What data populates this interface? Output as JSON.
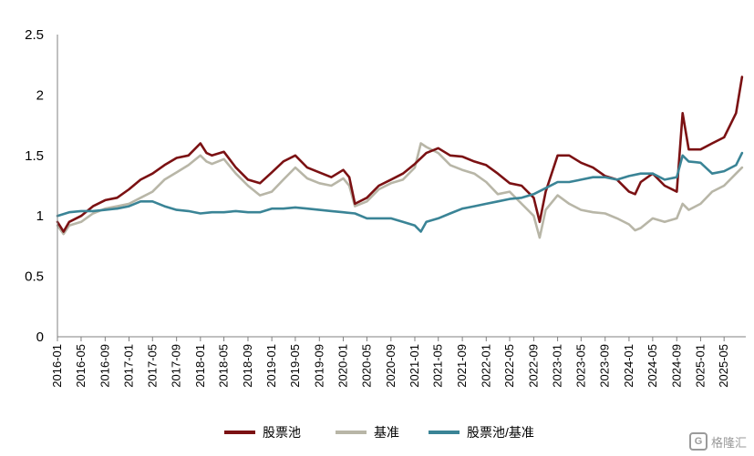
{
  "chart_data": {
    "type": "line",
    "title": "",
    "xlabel": "",
    "ylabel": "",
    "ylim": [
      0,
      2.5
    ],
    "yticks": [
      "0",
      "0.5",
      "1",
      "1.5",
      "2",
      "2.5"
    ],
    "xticks": [
      "2016-01",
      "2016-05",
      "2016-09",
      "2017-01",
      "2017-05",
      "2017-09",
      "2018-01",
      "2018-05",
      "2018-09",
      "2019-01",
      "2019-05",
      "2019-09",
      "2020-01",
      "2020-05",
      "2020-09",
      "2021-01",
      "2021-05",
      "2021-09",
      "2022-01",
      "2022-05",
      "2022-09",
      "2023-01",
      "2023-05",
      "2023-09",
      "2024-01",
      "2024-05",
      "2024-09",
      "2025-01",
      "2025-05"
    ],
    "legend_position": "bottom",
    "grid": false,
    "series": [
      {
        "name": "股票池",
        "color": "#7B1113",
        "x": [
          "2016-01",
          "2016-02",
          "2016-03",
          "2016-05",
          "2016-07",
          "2016-09",
          "2016-11",
          "2017-01",
          "2017-03",
          "2017-05",
          "2017-07",
          "2017-09",
          "2017-11",
          "2018-01",
          "2018-02",
          "2018-03",
          "2018-05",
          "2018-07",
          "2018-09",
          "2018-11",
          "2019-01",
          "2019-03",
          "2019-05",
          "2019-07",
          "2019-09",
          "2019-11",
          "2020-01",
          "2020-02",
          "2020-03",
          "2020-05",
          "2020-07",
          "2020-09",
          "2020-11",
          "2021-01",
          "2021-03",
          "2021-05",
          "2021-07",
          "2021-09",
          "2021-11",
          "2022-01",
          "2022-03",
          "2022-05",
          "2022-07",
          "2022-09",
          "2022-10",
          "2022-11",
          "2023-01",
          "2023-03",
          "2023-05",
          "2023-07",
          "2023-09",
          "2023-11",
          "2024-01",
          "2024-02",
          "2024-03",
          "2024-05",
          "2024-07",
          "2024-09",
          "2024-10",
          "2024-11",
          "2025-01",
          "2025-03",
          "2025-05",
          "2025-07",
          "2025-08"
        ],
        "values": [
          0.95,
          0.87,
          0.95,
          1.0,
          1.08,
          1.13,
          1.15,
          1.22,
          1.3,
          1.35,
          1.42,
          1.48,
          1.5,
          1.6,
          1.52,
          1.5,
          1.53,
          1.4,
          1.3,
          1.27,
          1.36,
          1.45,
          1.5,
          1.4,
          1.36,
          1.32,
          1.38,
          1.32,
          1.1,
          1.15,
          1.25,
          1.3,
          1.35,
          1.43,
          1.52,
          1.56,
          1.5,
          1.49,
          1.45,
          1.42,
          1.35,
          1.27,
          1.25,
          1.15,
          0.95,
          1.2,
          1.5,
          1.5,
          1.44,
          1.4,
          1.33,
          1.3,
          1.2,
          1.18,
          1.28,
          1.35,
          1.25,
          1.2,
          1.85,
          1.55,
          1.55,
          1.6,
          1.65,
          1.85,
          2.15
        ]
      },
      {
        "name": "基准",
        "color": "#B8B6A7",
        "x": [
          "2016-01",
          "2016-02",
          "2016-03",
          "2016-05",
          "2016-07",
          "2016-09",
          "2016-11",
          "2017-01",
          "2017-03",
          "2017-05",
          "2017-07",
          "2017-09",
          "2017-11",
          "2018-01",
          "2018-02",
          "2018-03",
          "2018-05",
          "2018-07",
          "2018-09",
          "2018-11",
          "2019-01",
          "2019-03",
          "2019-05",
          "2019-07",
          "2019-09",
          "2019-11",
          "2020-01",
          "2020-02",
          "2020-03",
          "2020-05",
          "2020-07",
          "2020-09",
          "2020-11",
          "2021-01",
          "2021-02",
          "2021-03",
          "2021-05",
          "2021-07",
          "2021-09",
          "2021-11",
          "2022-01",
          "2022-03",
          "2022-05",
          "2022-07",
          "2022-09",
          "2022-10",
          "2022-11",
          "2023-01",
          "2023-03",
          "2023-05",
          "2023-07",
          "2023-09",
          "2023-11",
          "2024-01",
          "2024-02",
          "2024-03",
          "2024-05",
          "2024-07",
          "2024-09",
          "2024-10",
          "2024-11",
          "2025-01",
          "2025-03",
          "2025-05",
          "2025-07",
          "2025-08"
        ],
        "values": [
          0.92,
          0.85,
          0.92,
          0.95,
          1.02,
          1.06,
          1.08,
          1.1,
          1.15,
          1.2,
          1.3,
          1.36,
          1.42,
          1.5,
          1.45,
          1.43,
          1.47,
          1.35,
          1.25,
          1.17,
          1.2,
          1.3,
          1.4,
          1.31,
          1.27,
          1.25,
          1.31,
          1.25,
          1.08,
          1.12,
          1.22,
          1.27,
          1.3,
          1.4,
          1.6,
          1.57,
          1.52,
          1.42,
          1.38,
          1.35,
          1.28,
          1.18,
          1.2,
          1.1,
          1.0,
          0.82,
          1.05,
          1.17,
          1.1,
          1.05,
          1.03,
          1.02,
          0.98,
          0.93,
          0.88,
          0.9,
          0.98,
          0.95,
          0.98,
          1.1,
          1.05,
          1.1,
          1.2,
          1.25,
          1.35,
          1.4
        ]
      },
      {
        "name": "股票池/基准",
        "color": "#3A8496",
        "x": [
          "2016-01",
          "2016-03",
          "2016-05",
          "2016-07",
          "2016-09",
          "2016-11",
          "2017-01",
          "2017-03",
          "2017-05",
          "2017-07",
          "2017-09",
          "2017-11",
          "2018-01",
          "2018-03",
          "2018-05",
          "2018-07",
          "2018-09",
          "2018-11",
          "2019-01",
          "2019-03",
          "2019-05",
          "2019-07",
          "2019-09",
          "2019-11",
          "2020-01",
          "2020-03",
          "2020-05",
          "2020-07",
          "2020-09",
          "2020-11",
          "2021-01",
          "2021-02",
          "2021-03",
          "2021-05",
          "2021-07",
          "2021-09",
          "2021-11",
          "2022-01",
          "2022-03",
          "2022-05",
          "2022-07",
          "2022-09",
          "2022-11",
          "2023-01",
          "2023-03",
          "2023-05",
          "2023-07",
          "2023-09",
          "2023-11",
          "2024-01",
          "2024-03",
          "2024-05",
          "2024-07",
          "2024-09",
          "2024-10",
          "2024-11",
          "2025-01",
          "2025-03",
          "2025-05",
          "2025-07",
          "2025-08"
        ],
        "values": [
          1.0,
          1.03,
          1.04,
          1.04,
          1.05,
          1.06,
          1.08,
          1.12,
          1.12,
          1.08,
          1.05,
          1.04,
          1.02,
          1.03,
          1.03,
          1.04,
          1.03,
          1.03,
          1.06,
          1.06,
          1.07,
          1.06,
          1.05,
          1.04,
          1.03,
          1.02,
          0.98,
          0.98,
          0.98,
          0.95,
          0.92,
          0.87,
          0.95,
          0.98,
          1.02,
          1.06,
          1.08,
          1.1,
          1.12,
          1.14,
          1.15,
          1.18,
          1.23,
          1.28,
          1.28,
          1.3,
          1.32,
          1.32,
          1.3,
          1.33,
          1.35,
          1.35,
          1.3,
          1.32,
          1.5,
          1.45,
          1.44,
          1.35,
          1.37,
          1.42,
          1.52
        ]
      }
    ]
  },
  "watermark": {
    "logo": "G",
    "text": "格隆汇"
  }
}
